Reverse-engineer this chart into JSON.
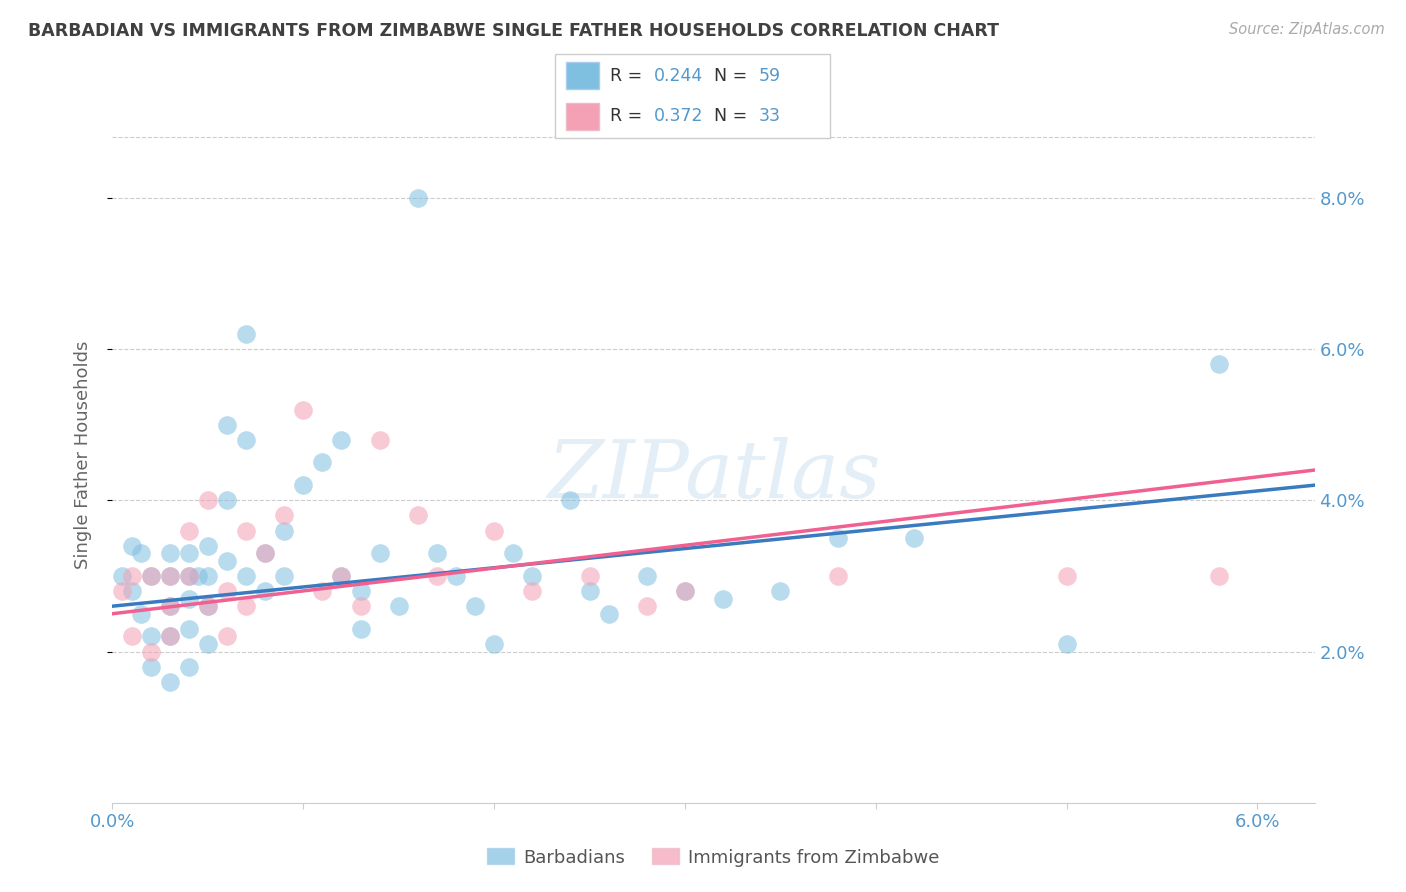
{
  "title": "BARBADIAN VS IMMIGRANTS FROM ZIMBABWE SINGLE FATHER HOUSEHOLDS CORRELATION CHART",
  "source_text": "Source: ZipAtlas.com",
  "ylabel": "Single Father Households",
  "blue_color": "#7fbfdf",
  "pink_color": "#f4a0b5",
  "blue_line_color": "#3a7bbf",
  "pink_line_color": "#f06090",
  "legend_R_blue": "0.244",
  "legend_N_blue": "59",
  "legend_R_pink": "0.372",
  "legend_N_pink": "33",
  "title_color": "#404040",
  "axis_color": "#5599cc",
  "grid_color": "#cccccc",
  "watermark": "ZIPatlas",
  "xlim": [
    0.0,
    0.063
  ],
  "ylim": [
    0.0,
    0.092
  ],
  "blue_scatter_x": [
    0.0005,
    0.001,
    0.001,
    0.0015,
    0.0015,
    0.002,
    0.002,
    0.002,
    0.003,
    0.003,
    0.003,
    0.003,
    0.003,
    0.004,
    0.004,
    0.004,
    0.004,
    0.004,
    0.0045,
    0.005,
    0.005,
    0.005,
    0.005,
    0.006,
    0.006,
    0.006,
    0.007,
    0.007,
    0.007,
    0.008,
    0.008,
    0.009,
    0.009,
    0.01,
    0.011,
    0.012,
    0.012,
    0.013,
    0.013,
    0.014,
    0.015,
    0.016,
    0.017,
    0.018,
    0.019,
    0.02,
    0.021,
    0.022,
    0.024,
    0.025,
    0.026,
    0.028,
    0.03,
    0.032,
    0.035,
    0.038,
    0.042,
    0.05,
    0.058
  ],
  "blue_scatter_y": [
    0.03,
    0.034,
    0.028,
    0.033,
    0.025,
    0.03,
    0.022,
    0.018,
    0.033,
    0.03,
    0.026,
    0.022,
    0.016,
    0.033,
    0.03,
    0.027,
    0.023,
    0.018,
    0.03,
    0.034,
    0.03,
    0.026,
    0.021,
    0.05,
    0.04,
    0.032,
    0.062,
    0.048,
    0.03,
    0.033,
    0.028,
    0.036,
    0.03,
    0.042,
    0.045,
    0.048,
    0.03,
    0.028,
    0.023,
    0.033,
    0.026,
    0.08,
    0.033,
    0.03,
    0.026,
    0.021,
    0.033,
    0.03,
    0.04,
    0.028,
    0.025,
    0.03,
    0.028,
    0.027,
    0.028,
    0.035,
    0.035,
    0.021,
    0.058
  ],
  "pink_scatter_x": [
    0.0005,
    0.001,
    0.001,
    0.002,
    0.002,
    0.003,
    0.003,
    0.003,
    0.004,
    0.004,
    0.005,
    0.005,
    0.006,
    0.006,
    0.007,
    0.007,
    0.008,
    0.009,
    0.01,
    0.011,
    0.012,
    0.013,
    0.014,
    0.016,
    0.017,
    0.02,
    0.022,
    0.025,
    0.028,
    0.03,
    0.038,
    0.05,
    0.058
  ],
  "pink_scatter_y": [
    0.028,
    0.03,
    0.022,
    0.03,
    0.02,
    0.03,
    0.026,
    0.022,
    0.036,
    0.03,
    0.04,
    0.026,
    0.028,
    0.022,
    0.036,
    0.026,
    0.033,
    0.038,
    0.052,
    0.028,
    0.03,
    0.026,
    0.048,
    0.038,
    0.03,
    0.036,
    0.028,
    0.03,
    0.026,
    0.028,
    0.03,
    0.03,
    0.03
  ],
  "blue_line_x0": 0.0,
  "blue_line_x1": 0.063,
  "blue_line_y0": 0.026,
  "blue_line_y1": 0.042,
  "pink_line_x0": 0.0,
  "pink_line_x1": 0.063,
  "pink_line_y0": 0.025,
  "pink_line_y1": 0.044
}
